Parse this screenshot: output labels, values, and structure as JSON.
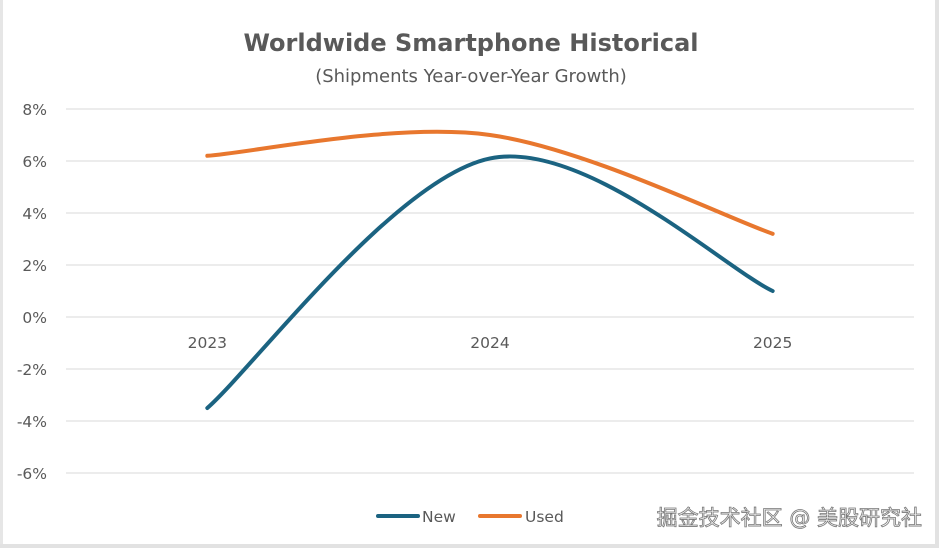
{
  "chart_data": {
    "type": "line",
    "title": "Worldwide Smartphone Historical",
    "subtitle": "(Shipments Year-over-Year Growth)",
    "categories": [
      "2023",
      "2024",
      "2025"
    ],
    "series": [
      {
        "name": "New",
        "color": "#1b6381",
        "values": [
          -3.5,
          6.1,
          1.0
        ]
      },
      {
        "name": "Used",
        "color": "#e8772e",
        "values": [
          6.2,
          7.0,
          3.2
        ]
      }
    ],
    "xlabel": "",
    "ylabel": "",
    "ylim": [
      -6,
      8
    ],
    "yticks": [
      8,
      6,
      4,
      2,
      0,
      -2,
      -4,
      -6
    ],
    "ytick_labels": [
      "8%",
      "6%",
      "4%",
      "2%",
      "0%",
      "-2%",
      "-4%",
      "-6%"
    ],
    "grid": true,
    "smooth": true,
    "legend_position": "bottom"
  },
  "watermark": "掘金技术社区 @ 美股研究社"
}
